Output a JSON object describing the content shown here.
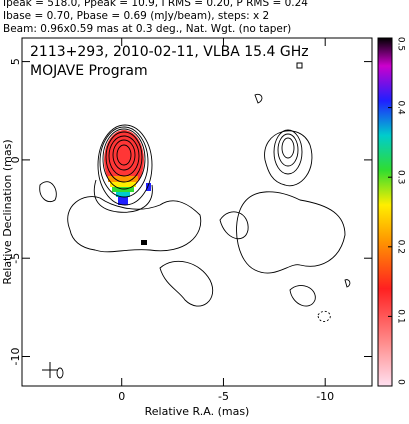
{
  "chart_data": {
    "type": "contour",
    "header": [
      "Ipeak = 518.0, Ppeak = 10.9, I RMS = 0.20, P RMS = 0.24",
      "Ibase = 0.70, Pbase = 0.69 (mJy/beam), steps: x 2",
      "Beam: 0.96x0.59 mas at 0.3 deg., Nat. Wgt. (no taper)"
    ],
    "title": "2113+293, 2010-02-11, VLBA 15.4 GHz",
    "subtitle": "MOJAVE Program",
    "xlabel": "Relative R.A. (mas)",
    "ylabel": "Relative Declination (mas)",
    "xlim": [
      4.9,
      -12.3
    ],
    "xticks": [
      0,
      -5,
      -10
    ],
    "ylim": [
      -11.5,
      6.2
    ],
    "yticks": [
      -10,
      -5,
      0,
      5
    ],
    "clim": [
      0,
      0.5
    ],
    "cticks": [
      0,
      0.1,
      0.2,
      0.3,
      0.4,
      0.5
    ]
  }
}
